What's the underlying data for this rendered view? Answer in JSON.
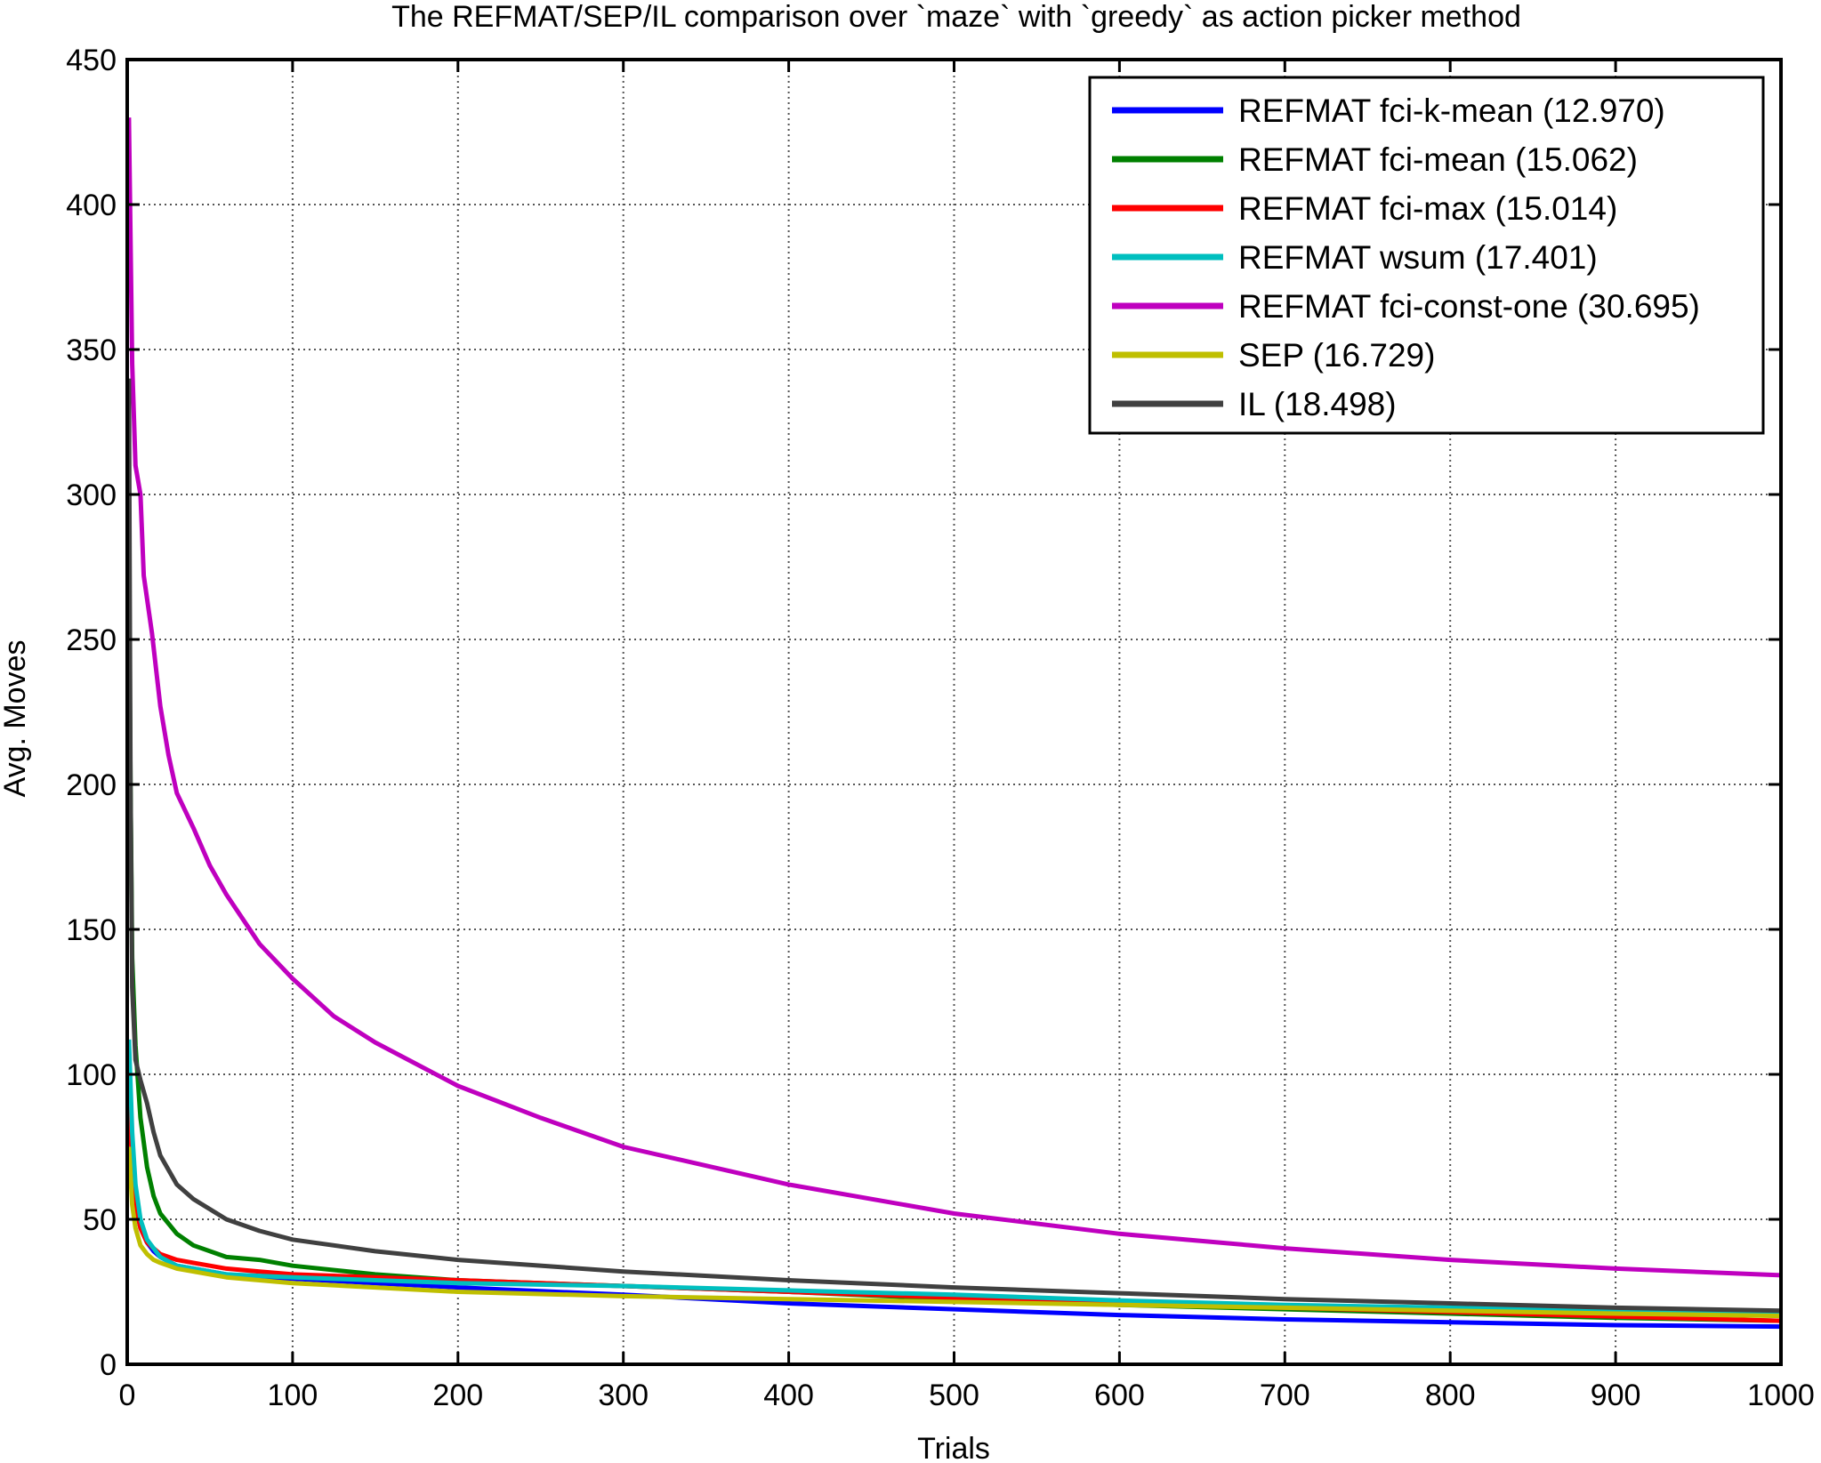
{
  "chart_data": {
    "type": "line",
    "title": "The REFMAT/SEP/IL comparison over `maze` with `greedy` as action picker method",
    "xlabel": "Trials",
    "ylabel": "Avg. Moves",
    "xlim": [
      0,
      1000
    ],
    "ylim": [
      0,
      450
    ],
    "xticks": [
      0,
      100,
      200,
      300,
      400,
      500,
      600,
      700,
      800,
      900,
      1000
    ],
    "yticks": [
      0,
      50,
      100,
      150,
      200,
      250,
      300,
      350,
      400,
      450
    ],
    "grid": true,
    "legend_position": "top-right",
    "series": [
      {
        "name": "REFMAT fci-k-mean (12.970)",
        "color": "#0000ff",
        "x": [
          1,
          3,
          5,
          8,
          12,
          16,
          20,
          30,
          40,
          60,
          80,
          100,
          150,
          200,
          300,
          400,
          500,
          600,
          700,
          800,
          900,
          1000
        ],
        "y": [
          100,
          70,
          55,
          47,
          42,
          39,
          37,
          34,
          33,
          31,
          30,
          29.5,
          28,
          26.5,
          24,
          21,
          19,
          17,
          15.5,
          14.5,
          13.5,
          13
        ]
      },
      {
        "name": "REFMAT fci-mean (15.062)",
        "color": "#008000",
        "x": [
          1,
          2,
          3,
          5,
          8,
          12,
          16,
          20,
          30,
          40,
          60,
          80,
          100,
          150,
          200,
          300,
          400,
          500,
          600,
          700,
          800,
          900,
          1000
        ],
        "y": [
          275,
          200,
          140,
          110,
          85,
          68,
          58,
          52,
          45,
          41,
          37,
          36,
          34,
          31,
          29,
          27,
          25,
          22.5,
          20.5,
          19,
          17.5,
          16,
          15
        ]
      },
      {
        "name": "REFMAT fci-max (15.014)",
        "color": "#ff0000",
        "x": [
          1,
          3,
          5,
          8,
          12,
          16,
          20,
          30,
          40,
          60,
          80,
          100,
          150,
          200,
          300,
          400,
          500,
          600,
          700,
          800,
          900,
          1000
        ],
        "y": [
          95,
          68,
          55,
          47,
          42,
          40,
          38,
          36,
          35,
          33,
          32,
          31,
          30,
          29,
          27,
          25,
          23,
          21,
          19.5,
          18,
          16.5,
          15
        ]
      },
      {
        "name": "REFMAT wsum (17.401)",
        "color": "#00bfbf",
        "x": [
          1,
          3,
          5,
          8,
          12,
          16,
          20,
          30,
          40,
          60,
          80,
          100,
          150,
          200,
          300,
          400,
          500,
          600,
          700,
          800,
          900,
          1000
        ],
        "y": [
          112,
          80,
          62,
          50,
          43,
          40,
          37,
          34,
          33,
          31,
          30.5,
          30,
          29,
          28,
          27,
          25.5,
          24,
          22,
          20.5,
          19.5,
          18.5,
          17.5
        ]
      },
      {
        "name": "REFMAT fci-const-one (30.695)",
        "color": "#bf00bf",
        "x": [
          1,
          3,
          5,
          8,
          10,
          15,
          20,
          25,
          30,
          40,
          50,
          60,
          80,
          100,
          125,
          150,
          200,
          250,
          300,
          400,
          500,
          600,
          700,
          800,
          900,
          1000
        ],
        "y": [
          430,
          345,
          310,
          300,
          272,
          252,
          227,
          210,
          197,
          185,
          172,
          162,
          145,
          133,
          120,
          111,
          96,
          85,
          75,
          62,
          52,
          45,
          40,
          36,
          33,
          30.7
        ]
      },
      {
        "name": "SEP (16.729)",
        "color": "#bfbf00",
        "x": [
          1,
          3,
          5,
          8,
          12,
          16,
          20,
          30,
          40,
          60,
          80,
          100,
          150,
          200,
          300,
          400,
          500,
          600,
          700,
          800,
          900,
          1000
        ],
        "y": [
          75,
          55,
          47,
          41,
          38,
          36,
          35,
          33,
          32,
          30,
          29,
          28,
          26.5,
          25,
          23.5,
          22.5,
          21.5,
          20.5,
          19.5,
          18.5,
          17.5,
          16.7
        ]
      },
      {
        "name": "IL (18.498)",
        "color": "#404040",
        "x": [
          1,
          2,
          3,
          5,
          8,
          12,
          16,
          20,
          30,
          40,
          60,
          80,
          100,
          150,
          200,
          300,
          400,
          500,
          600,
          700,
          800,
          900,
          1000
        ],
        "y": [
          340,
          200,
          130,
          105,
          98,
          90,
          80,
          72,
          62,
          57,
          50,
          46,
          43,
          39,
          36,
          32,
          29,
          26.5,
          24.5,
          22.5,
          21,
          19.5,
          18.5
        ]
      }
    ]
  }
}
